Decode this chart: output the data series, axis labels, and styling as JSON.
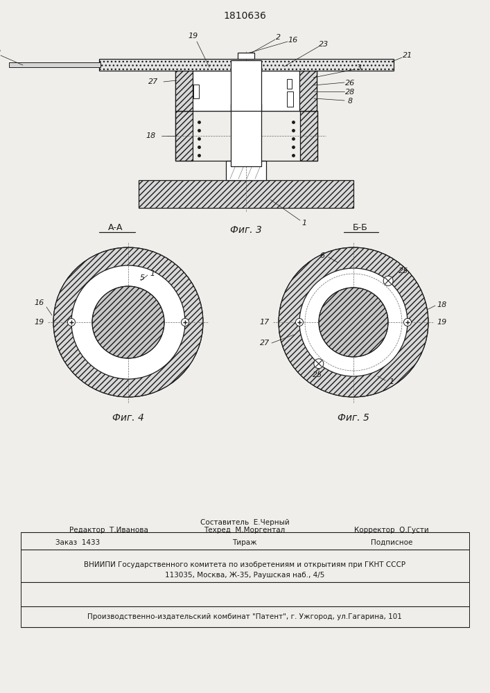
{
  "patent_number": "1810636",
  "bg_color": "#f0eeea",
  "line_color": "#1a1a1a",
  "fig3_label": "Фиг. 3",
  "fig4_label": "Фиг. 4",
  "fig5_label": "Фиг. 5",
  "section_aa": "А-А",
  "section_bb": "Б-Б",
  "footer_line1_left": "Редактор  Т.Иванова",
  "footer_line1_center_top": "Составитель  Е.Черный",
  "footer_line1_center_bot": "Техред  М.Моргентал",
  "footer_line1_right": "Корректор  О.Густи",
  "footer_line2_col1": "Заказ  1433",
  "footer_line2_col2": "Тираж",
  "footer_line2_col3": "Подписное",
  "footer_line3": "ВНИИПИ Государственного комитета по изобретениям и открытиям при ГКНТ СССР",
  "footer_line4": "113035, Москва, Ж-35, Раушская наб., 4/5",
  "footer_line5": "Производственно-издательский комбинат \"Патент\", г. Ужгород, ул.Гагарина, 101"
}
